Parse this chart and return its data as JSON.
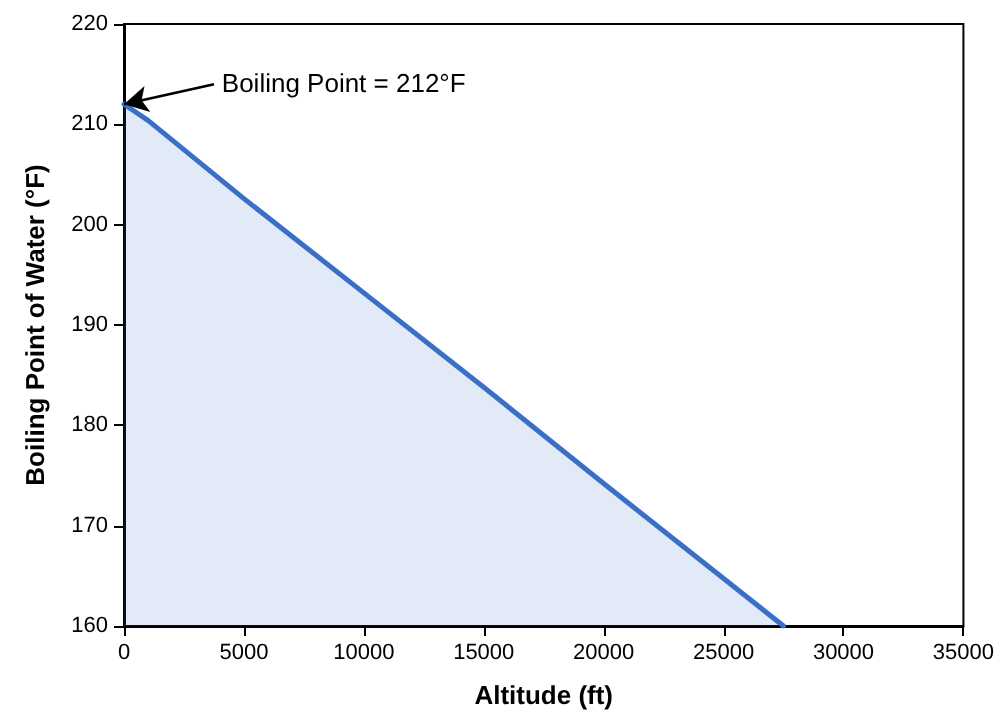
{
  "chart_data": {
    "type": "area",
    "xlabel": "Altitude (ft)",
    "ylabel": "Boiling Point of Water (°F)",
    "x": [
      0,
      1000,
      5000,
      10000,
      15000,
      20000,
      27500
    ],
    "series": [
      {
        "color": "#3a6fc8",
        "values": [
          212,
          210.4,
          202.6,
          193.2,
          183.8,
          174.2,
          160
        ]
      }
    ],
    "xlim": [
      0,
      35000
    ],
    "xticks": [
      0,
      5000,
      10000,
      15000,
      20000,
      25000,
      30000,
      35000
    ],
    "ylim": [
      160,
      220
    ],
    "yticks": [
      160,
      170,
      180,
      190,
      200,
      210,
      220
    ],
    "grid": false,
    "marker": "none",
    "line_style": "solid",
    "annotations": [
      {
        "text": "Boiling Point = 212°F",
        "x": 0,
        "y": 212
      }
    ]
  }
}
